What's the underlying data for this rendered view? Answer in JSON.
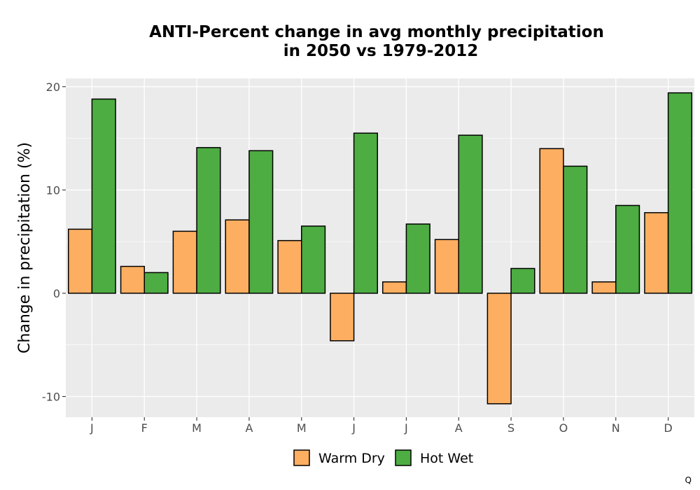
{
  "chart_data": {
    "type": "bar",
    "title": "ANTI-Percent change in avg monthly precipitation",
    "subtitle": "in 2050 vs 1979-2012",
    "xlabel": "",
    "ylabel": "Change in precipitation (%)",
    "categories": [
      "J",
      "F",
      "M",
      "A",
      "M",
      "J",
      "J",
      "A",
      "S",
      "O",
      "N",
      "D"
    ],
    "series": [
      {
        "name": "Warm Dry",
        "color": "#FDAE61",
        "values": [
          6.2,
          2.6,
          6.0,
          7.1,
          5.1,
          -4.6,
          1.1,
          5.2,
          -10.7,
          14.0,
          1.1,
          7.8
        ]
      },
      {
        "name": "Hot Wet",
        "color": "#4DAC42",
        "values": [
          18.8,
          2.0,
          14.1,
          13.8,
          6.5,
          15.5,
          6.7,
          15.3,
          2.4,
          12.3,
          8.5,
          19.4
        ]
      }
    ],
    "ylim": [
      -12.0,
      20.8
    ],
    "yticks": [
      -10,
      0,
      10,
      20
    ],
    "ytick_labels": [
      "-10",
      "0",
      "10",
      "20"
    ],
    "grid": true,
    "legend_position": "bottom"
  },
  "corner_mark": "Q"
}
